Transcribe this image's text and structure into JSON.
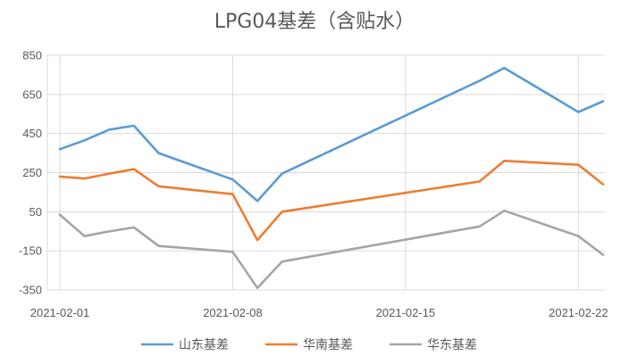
{
  "chart_data": {
    "type": "line",
    "title": "LPG04基差（含贴水）",
    "xlabel": "",
    "ylabel": "",
    "ylim": [
      -350,
      850
    ],
    "yticks": [
      850,
      650,
      450,
      250,
      50,
      -150,
      -350
    ],
    "xticks": [
      "2021-02-01",
      "2021-02-08",
      "2021-02-15",
      "2021-02-22"
    ],
    "x": [
      "2021-02-01",
      "2021-02-02",
      "2021-02-03",
      "2021-02-04",
      "2021-02-05",
      "2021-02-08",
      "2021-02-09",
      "2021-02-10",
      "2021-02-18",
      "2021-02-19",
      "2021-02-22",
      "2021-02-23"
    ],
    "grid": "horizontal",
    "legend": "bottom",
    "series": [
      {
        "name": "山东基差",
        "color": "#5B9BD5",
        "values": [
          370,
          415,
          470,
          490,
          350,
          215,
          105,
          245,
          720,
          785,
          560,
          615
        ]
      },
      {
        "name": "华南基差",
        "color": "#ED7D31",
        "values": [
          230,
          220,
          245,
          268,
          180,
          140,
          -95,
          50,
          205,
          310,
          290,
          190
        ]
      },
      {
        "name": "华东基差",
        "color": "#A5A5A5",
        "values": [
          35,
          -75,
          -50,
          -30,
          -125,
          -155,
          -340,
          -205,
          -25,
          55,
          -75,
          -170
        ]
      }
    ]
  }
}
